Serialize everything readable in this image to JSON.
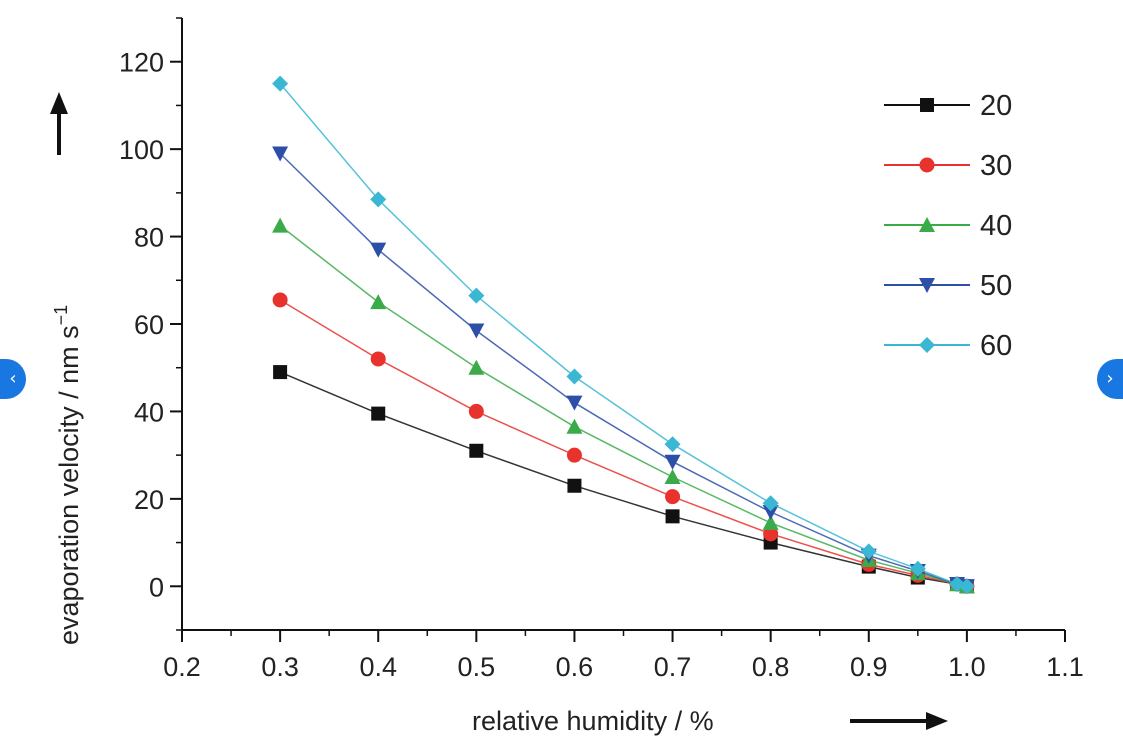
{
  "chart_data": {
    "type": "line",
    "xlabel": "relative humidity / %",
    "ylabel": "evaporation velocity / nm s",
    "ylabel_superscript": "−1",
    "xlim": [
      0.2,
      1.1
    ],
    "ylim": [
      -10,
      130
    ],
    "x_ticks": [
      "0.2",
      "0.3",
      "0.4",
      "0.5",
      "0.6",
      "0.7",
      "0.8",
      "0.9",
      "1.0",
      "1.1"
    ],
    "y_ticks": [
      "0",
      "20",
      "40",
      "60",
      "80",
      "100",
      "120"
    ],
    "legend_position": "top-right",
    "series": [
      {
        "name": "20",
        "color": "#111111",
        "marker": "square",
        "x": [
          0.3,
          0.4,
          0.5,
          0.6,
          0.7,
          0.8,
          0.9,
          0.95,
          0.99,
          1.0
        ],
        "y": [
          49,
          39.5,
          31,
          23,
          16,
          10,
          4.5,
          2,
          0.5,
          0
        ]
      },
      {
        "name": "30",
        "color": "#e8322e",
        "marker": "circle",
        "x": [
          0.3,
          0.4,
          0.5,
          0.6,
          0.7,
          0.8,
          0.9,
          0.95,
          0.99,
          1.0
        ],
        "y": [
          65.5,
          52,
          40,
          30,
          20.5,
          12,
          5,
          2.5,
          0.5,
          0
        ]
      },
      {
        "name": "40",
        "color": "#3bab4a",
        "marker": "triangle-up",
        "x": [
          0.3,
          0.4,
          0.5,
          0.6,
          0.7,
          0.8,
          0.9,
          0.95,
          0.99,
          1.0
        ],
        "y": [
          82.5,
          65,
          50,
          36.5,
          25,
          14.5,
          6,
          3,
          0.5,
          0
        ]
      },
      {
        "name": "50",
        "color": "#2d4fa8",
        "marker": "triangle-down",
        "x": [
          0.3,
          0.4,
          0.5,
          0.6,
          0.7,
          0.8,
          0.9,
          0.95,
          0.99,
          1.0
        ],
        "y": [
          99,
          77,
          58.5,
          42,
          28.5,
          17,
          7,
          3.5,
          0.5,
          0
        ]
      },
      {
        "name": "60",
        "color": "#3ab7d2",
        "marker": "diamond",
        "x": [
          0.3,
          0.4,
          0.5,
          0.6,
          0.7,
          0.8,
          0.9,
          0.95,
          0.99,
          1.0
        ],
        "y": [
          115,
          88.5,
          66.5,
          48,
          32.5,
          19,
          8,
          4,
          0.5,
          0
        ]
      }
    ]
  },
  "nav": {
    "prev_icon": "‹",
    "next_icon": "›"
  }
}
